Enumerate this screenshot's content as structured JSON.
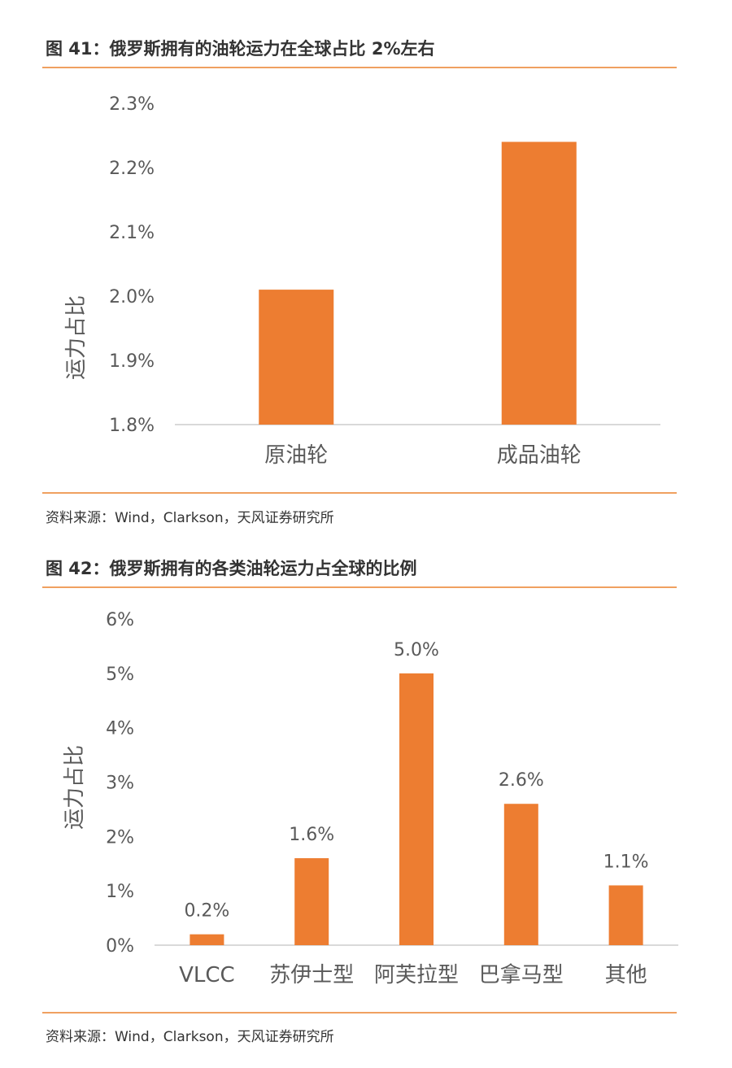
{
  "figures": [
    {
      "title": "图 41：俄罗斯拥有的油轮运力在全球占比 2%左右",
      "source": "资料来源：Wind，Clarkson，天风证券研究所"
    },
    {
      "title": "图 42：俄罗斯拥有的各类油轮运力占全球的比例",
      "source": "资料来源：Wind，Clarkson，天风证券研究所"
    }
  ],
  "chart_data": [
    {
      "type": "bar",
      "categories": [
        "原油轮",
        "成品油轮"
      ],
      "values": [
        2.01,
        2.24
      ],
      "ylabel": "运力占比",
      "ylim": [
        1.8,
        2.3
      ],
      "yticks": [
        "1.8%",
        "1.9%",
        "2.0%",
        "2.1%",
        "2.2%",
        "2.3%"
      ],
      "color": "#ed7d31",
      "data_labels": false
    },
    {
      "type": "bar",
      "categories": [
        "VLCC",
        "苏伊士型",
        "阿芙拉型",
        "巴拿马型",
        "其他"
      ],
      "values": [
        0.2,
        1.6,
        5.0,
        2.6,
        1.1
      ],
      "data_labels": [
        "0.2%",
        "1.6%",
        "5.0%",
        "2.6%",
        "1.1%"
      ],
      "ylabel": "运力占比",
      "ylim": [
        0,
        6
      ],
      "yticks": [
        "0%",
        "1%",
        "2%",
        "3%",
        "4%",
        "5%",
        "6%"
      ],
      "color": "#ed7d31"
    }
  ]
}
